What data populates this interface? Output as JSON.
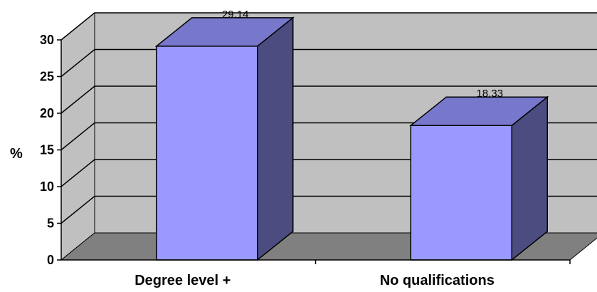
{
  "chart_data": {
    "type": "bar",
    "categories": [
      "Degree level +",
      "No qualifications"
    ],
    "values": [
      29.14,
      18.33
    ],
    "data_labels": [
      "29.14",
      "18.33"
    ],
    "title": "",
    "xlabel": "",
    "ylabel": "%",
    "ylim": [
      0,
      30
    ],
    "yticks": [
      "0",
      "5",
      "10",
      "15",
      "20",
      "25",
      "30"
    ],
    "grid": true,
    "style": "3d-column",
    "colors": {
      "bar_front": "#9999ff",
      "bar_top": "#7777cc",
      "bar_side": "#4c4c80",
      "back_wall": "#c0c0c0",
      "floor": "#808080"
    }
  }
}
